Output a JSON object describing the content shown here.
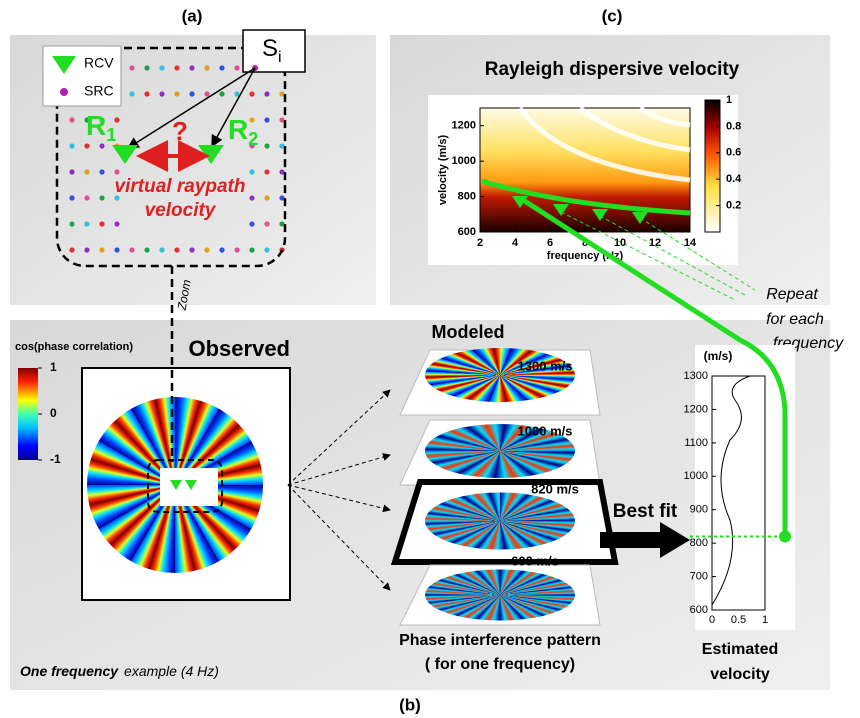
{
  "panel_a": {
    "label": "(a)",
    "legend": [
      "RCV",
      "SRC"
    ],
    "source": "S",
    "source_sub": "i",
    "r1": "R",
    "r1_sub": "1",
    "r2": "R",
    "r2_sub": "2",
    "question": "?",
    "caption": [
      "virtual raypath",
      "velocity"
    ],
    "zoom": "Zoom"
  },
  "panel_c": {
    "label": "(c)",
    "title": "Rayleigh dispersive velocity",
    "xlabel": "frequency (Hz)",
    "ylabel": "velocity (m/s)",
    "xlim": [
      2,
      14
    ],
    "xticks": [
      2,
      4,
      6,
      8,
      10,
      12,
      14
    ],
    "ylim": [
      600,
      1300
    ],
    "yticks": [
      600,
      800,
      1000,
      1200
    ],
    "colorbar_lim": [
      0,
      1
    ],
    "colorbar_ticks": [
      0.2,
      0.4,
      0.6,
      0.8,
      1
    ],
    "repeat": [
      "Repeat",
      "for each",
      "frequency"
    ]
  },
  "panel_b": {
    "label": "(b)",
    "colorbar_title": "cos(phase correlation)",
    "colorbar_lim": [
      -1,
      1
    ],
    "colorbar_ticks": [
      1,
      0,
      -1
    ],
    "observed": "Observed",
    "modeled": "Modeled",
    "velocities": [
      "1300 m/s",
      "1000 m/s",
      "820 m/s",
      "600 m/s"
    ],
    "best_fit": "Best fit",
    "pattern_caption": [
      "Phase interference pattern",
      "( for one frequency)"
    ],
    "footnote_bold": "One frequency",
    "footnote": "example (4 Hz)",
    "estimated": {
      "unit": "(m/s)",
      "ylim": [
        600,
        1300
      ],
      "yticks": [
        600,
        700,
        800,
        900,
        1000,
        1100,
        1200,
        1300
      ],
      "xlim": [
        0,
        1
      ],
      "xticks": [
        0,
        0.5,
        1
      ],
      "estimate": 820,
      "caption": [
        "Estimated",
        "velocity"
      ]
    }
  }
}
